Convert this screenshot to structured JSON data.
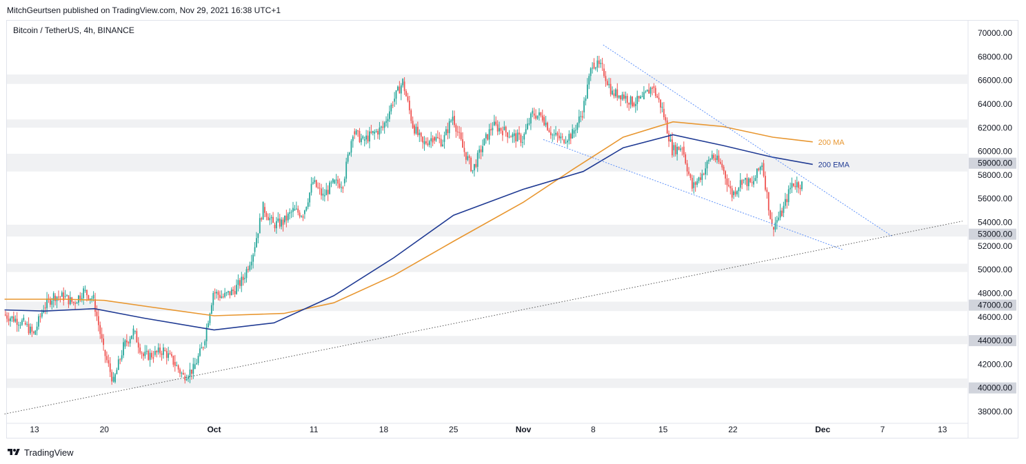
{
  "header": {
    "publisher": "MitchGeurtsen published on TradingView.com, Nov 29, 2021 16:38 UTC+1",
    "symbol": "Bitcoin / TetherUS, 4h, BINANCE"
  },
  "footer": {
    "brand": "TradingView"
  },
  "colors": {
    "up": "#26a69a",
    "down": "#ef5350",
    "ma200": "#e8962f",
    "ema200": "#1f3a93",
    "trend": "#5b8ff9",
    "support": "#555555",
    "zone": "#f0f1f3"
  },
  "chart_data": {
    "type": "candlestick",
    "ylim": [
      37000,
      71500
    ],
    "x_tick_labels": [
      {
        "label": "13",
        "date": "2021-09-13"
      },
      {
        "label": "20",
        "date": "2021-09-20"
      },
      {
        "label": "Oct",
        "date": "2021-10-01"
      },
      {
        "label": "11",
        "date": "2021-10-11"
      },
      {
        "label": "18",
        "date": "2021-10-18"
      },
      {
        "label": "25",
        "date": "2021-10-25"
      },
      {
        "label": "Nov",
        "date": "2021-11-01"
      },
      {
        "label": "8",
        "date": "2021-11-08"
      },
      {
        "label": "15",
        "date": "2021-11-15"
      },
      {
        "label": "22",
        "date": "2021-11-22"
      },
      {
        "label": "Dec",
        "date": "2021-12-01"
      },
      {
        "label": "7",
        "date": "2021-12-07"
      },
      {
        "label": "13",
        "date": "2021-12-13"
      }
    ],
    "y_ticks": [
      38000,
      40000,
      42000,
      44000,
      46000,
      48000,
      50000,
      52000,
      54000,
      56000,
      58000,
      60000,
      62000,
      64000,
      66000,
      68000,
      70000
    ],
    "y_tick_labels": [
      "38000.00",
      "40000.00",
      "42000.00",
      "44000.00",
      "46000.00",
      "48000.00",
      "50000.00",
      "52000.00",
      "54000.00",
      "56000.00",
      "58000.00",
      "60000.00",
      "62000.00",
      "64000.00",
      "66000.00",
      "68000.00",
      "70000.00"
    ],
    "highlighted_levels": [
      {
        "value": 59000,
        "label": "59000.00"
      },
      {
        "value": 53000,
        "label": "53000.00"
      },
      {
        "value": 47000,
        "label": "47000.00"
      },
      {
        "value": 44000,
        "label": "44000.00"
      },
      {
        "value": 40000,
        "label": "40000.00"
      }
    ],
    "zones": [
      [
        65700,
        66500
      ],
      [
        62000,
        62700
      ],
      [
        58300,
        59800
      ],
      [
        52800,
        53800
      ],
      [
        49800,
        50500
      ],
      [
        46500,
        47300
      ],
      [
        43700,
        44400
      ],
      [
        40000,
        40800
      ]
    ],
    "close": [
      {
        "date": "2021-09-10",
        "value": 46200
      },
      {
        "date": "2021-09-12",
        "value": 45500
      },
      {
        "date": "2021-09-13",
        "value": 44500
      },
      {
        "date": "2021-09-14",
        "value": 46800
      },
      {
        "date": "2021-09-15",
        "value": 47800
      },
      {
        "date": "2021-09-16",
        "value": 47700
      },
      {
        "date": "2021-09-17",
        "value": 47200
      },
      {
        "date": "2021-09-18",
        "value": 48200
      },
      {
        "date": "2021-09-19",
        "value": 47500
      },
      {
        "date": "2021-09-20",
        "value": 43200
      },
      {
        "date": "2021-09-21",
        "value": 40500
      },
      {
        "date": "2021-09-22",
        "value": 43500
      },
      {
        "date": "2021-09-23",
        "value": 44800
      },
      {
        "date": "2021-09-24",
        "value": 42700
      },
      {
        "date": "2021-09-25",
        "value": 42800
      },
      {
        "date": "2021-09-26",
        "value": 43200
      },
      {
        "date": "2021-09-27",
        "value": 42200
      },
      {
        "date": "2021-09-28",
        "value": 41000
      },
      {
        "date": "2021-09-29",
        "value": 41600
      },
      {
        "date": "2021-09-30",
        "value": 43600
      },
      {
        "date": "2021-10-01",
        "value": 48100
      },
      {
        "date": "2021-10-02",
        "value": 47700
      },
      {
        "date": "2021-10-03",
        "value": 48200
      },
      {
        "date": "2021-10-04",
        "value": 49200
      },
      {
        "date": "2021-10-05",
        "value": 51500
      },
      {
        "date": "2021-10-06",
        "value": 55300
      },
      {
        "date": "2021-10-07",
        "value": 53800
      },
      {
        "date": "2021-10-08",
        "value": 54000
      },
      {
        "date": "2021-10-09",
        "value": 55000
      },
      {
        "date": "2021-10-10",
        "value": 54700
      },
      {
        "date": "2021-10-11",
        "value": 57400
      },
      {
        "date": "2021-10-12",
        "value": 56200
      },
      {
        "date": "2021-10-13",
        "value": 57300
      },
      {
        "date": "2021-10-14",
        "value": 57300
      },
      {
        "date": "2021-10-15",
        "value": 61700
      },
      {
        "date": "2021-10-16",
        "value": 60900
      },
      {
        "date": "2021-10-17",
        "value": 61500
      },
      {
        "date": "2021-10-18",
        "value": 62000
      },
      {
        "date": "2021-10-19",
        "value": 64200
      },
      {
        "date": "2021-10-20",
        "value": 65900
      },
      {
        "date": "2021-10-21",
        "value": 62200
      },
      {
        "date": "2021-10-22",
        "value": 60600
      },
      {
        "date": "2021-10-23",
        "value": 61200
      },
      {
        "date": "2021-10-24",
        "value": 60800
      },
      {
        "date": "2021-10-25",
        "value": 63000
      },
      {
        "date": "2021-10-26",
        "value": 60300
      },
      {
        "date": "2021-10-27",
        "value": 58400
      },
      {
        "date": "2021-10-28",
        "value": 60500
      },
      {
        "date": "2021-10-29",
        "value": 62200
      },
      {
        "date": "2021-10-30",
        "value": 61800
      },
      {
        "date": "2021-10-31",
        "value": 61300
      },
      {
        "date": "2021-11-01",
        "value": 61000
      },
      {
        "date": "2021-11-02",
        "value": 63200
      },
      {
        "date": "2021-11-03",
        "value": 62900
      },
      {
        "date": "2021-11-04",
        "value": 61400
      },
      {
        "date": "2021-11-05",
        "value": 61000
      },
      {
        "date": "2021-11-06",
        "value": 61500
      },
      {
        "date": "2021-11-07",
        "value": 63300
      },
      {
        "date": "2021-11-08",
        "value": 67500
      },
      {
        "date": "2021-11-09",
        "value": 67000
      },
      {
        "date": "2021-11-10",
        "value": 64900
      },
      {
        "date": "2021-11-11",
        "value": 64800
      },
      {
        "date": "2021-11-12",
        "value": 64100
      },
      {
        "date": "2021-11-13",
        "value": 64400
      },
      {
        "date": "2021-11-14",
        "value": 65500
      },
      {
        "date": "2021-11-15",
        "value": 63600
      },
      {
        "date": "2021-11-16",
        "value": 60100
      },
      {
        "date": "2021-11-17",
        "value": 60400
      },
      {
        "date": "2021-11-18",
        "value": 56900
      },
      {
        "date": "2021-11-19",
        "value": 58100
      },
      {
        "date": "2021-11-20",
        "value": 59700
      },
      {
        "date": "2021-11-21",
        "value": 58700
      },
      {
        "date": "2021-11-22",
        "value": 56300
      },
      {
        "date": "2021-11-23",
        "value": 57600
      },
      {
        "date": "2021-11-24",
        "value": 57200
      },
      {
        "date": "2021-11-25",
        "value": 59000
      },
      {
        "date": "2021-11-26",
        "value": 53600
      },
      {
        "date": "2021-11-27",
        "value": 54800
      },
      {
        "date": "2021-11-28",
        "value": 57300
      },
      {
        "date": "2021-11-29",
        "value": 57200
      }
    ],
    "series": [
      {
        "name": "200 MA",
        "color": "#e8962f",
        "points": [
          {
            "date": "2021-09-10",
            "value": 47500
          },
          {
            "date": "2021-09-16",
            "value": 47500
          },
          {
            "date": "2021-09-20",
            "value": 47400
          },
          {
            "date": "2021-09-25",
            "value": 46800
          },
          {
            "date": "2021-10-01",
            "value": 46100
          },
          {
            "date": "2021-10-08",
            "value": 46300
          },
          {
            "date": "2021-10-13",
            "value": 47200
          },
          {
            "date": "2021-10-19",
            "value": 49500
          },
          {
            "date": "2021-10-25",
            "value": 52400
          },
          {
            "date": "2021-11-01",
            "value": 55700
          },
          {
            "date": "2021-11-06",
            "value": 58500
          },
          {
            "date": "2021-11-11",
            "value": 61200
          },
          {
            "date": "2021-11-16",
            "value": 62500
          },
          {
            "date": "2021-11-21",
            "value": 62100
          },
          {
            "date": "2021-11-26",
            "value": 61200
          },
          {
            "date": "2021-11-30",
            "value": 60800
          }
        ]
      },
      {
        "name": "200 EMA",
        "color": "#1f3a93",
        "points": [
          {
            "date": "2021-09-10",
            "value": 46600
          },
          {
            "date": "2021-09-14",
            "value": 46500
          },
          {
            "date": "2021-09-19",
            "value": 46700
          },
          {
            "date": "2021-09-24",
            "value": 45900
          },
          {
            "date": "2021-10-01",
            "value": 44900
          },
          {
            "date": "2021-10-07",
            "value": 45500
          },
          {
            "date": "2021-10-13",
            "value": 47800
          },
          {
            "date": "2021-10-19",
            "value": 51000
          },
          {
            "date": "2021-10-25",
            "value": 54600
          },
          {
            "date": "2021-11-01",
            "value": 56800
          },
          {
            "date": "2021-11-07",
            "value": 58300
          },
          {
            "date": "2021-11-11",
            "value": 60300
          },
          {
            "date": "2021-11-16",
            "value": 61400
          },
          {
            "date": "2021-11-21",
            "value": 60500
          },
          {
            "date": "2021-11-26",
            "value": 59500
          },
          {
            "date": "2021-11-30",
            "value": 58900
          }
        ]
      }
    ],
    "trendlines": [
      {
        "kind": "falling-resistance",
        "style": "dotted",
        "from": {
          "date": "2021-11-09",
          "value": 69000
        },
        "to": {
          "date": "2021-12-08",
          "value": 52800
        }
      },
      {
        "kind": "falling-support",
        "style": "dotted",
        "from": {
          "date": "2021-11-03",
          "value": 61000
        },
        "to": {
          "date": "2021-12-03",
          "value": 51700
        }
      },
      {
        "kind": "rising-support",
        "style": "dotted",
        "from": {
          "date": "2021-09-10",
          "value": 37800
        },
        "to": {
          "date": "2021-12-15",
          "value": 54100
        }
      }
    ]
  }
}
